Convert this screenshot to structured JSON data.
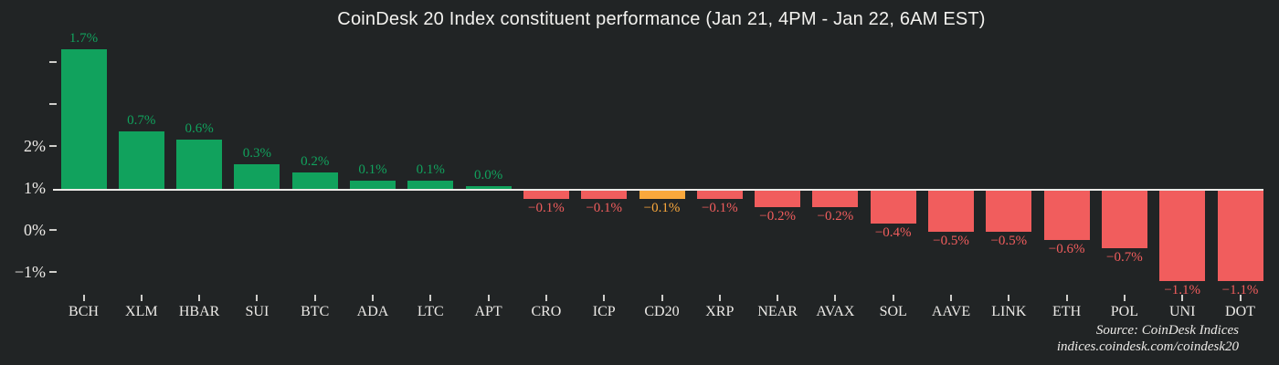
{
  "title": "CoinDesk 20 Index constituent performance (Jan 21, 4PM - Jan 22, 6AM EST)",
  "source": {
    "line1": "Source: CoinDesk Indices",
    "line2": "indices.coindesk.com/coindesk20"
  },
  "colors": {
    "background": "#212425",
    "positive": "#11a25d",
    "negative": "#f15d5d",
    "highlight": "#faa83c",
    "baseline": "#eceae7",
    "axis_text": "#eceae7",
    "tick_mark": "#cfcecb"
  },
  "chart_data": {
    "type": "bar",
    "title": "CoinDesk 20 Index constituent performance (Jan 21, 4PM - Jan 22, 6AM EST)",
    "categories": [
      "BCH",
      "XLM",
      "HBAR",
      "SUI",
      "BTC",
      "ADA",
      "LTC",
      "APT",
      "CRO",
      "ICP",
      "CD20",
      "XRP",
      "NEAR",
      "AVAX",
      "SOL",
      "AAVE",
      "LINK",
      "ETH",
      "POL",
      "UNI",
      "DOT"
    ],
    "values": [
      1.7,
      0.7,
      0.6,
      0.3,
      0.2,
      0.1,
      0.1,
      0.0,
      -0.1,
      -0.1,
      -0.1,
      -0.1,
      -0.2,
      -0.2,
      -0.4,
      -0.5,
      -0.5,
      -0.6,
      -0.7,
      -1.1,
      -1.1
    ],
    "value_labels": [
      "1.7%",
      "0.7%",
      "0.6%",
      "0.3%",
      "0.2%",
      "0.1%",
      "0.1%",
      "0.0%",
      "−0.1%",
      "−0.1%",
      "−0.1%",
      "−0.1%",
      "−0.2%",
      "−0.2%",
      "−0.4%",
      "−0.5%",
      "−0.5%",
      "−0.6%",
      "−0.7%",
      "−1.1%",
      "−1.1%"
    ],
    "highlight_category": "CD20",
    "y_tick_labels": [
      "",
      "",
      "2%",
      "1%",
      "0%",
      "−1%"
    ],
    "xlabel": "",
    "ylabel": "",
    "grid": false,
    "legend": false
  }
}
